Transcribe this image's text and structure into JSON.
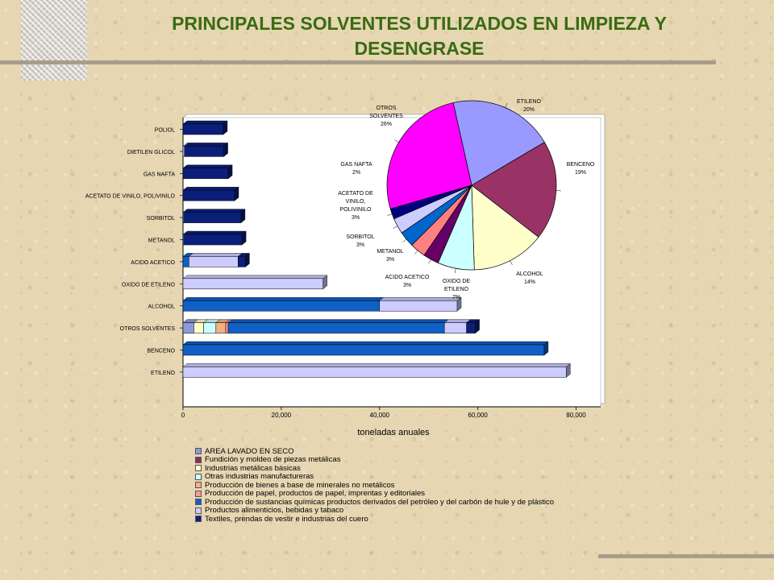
{
  "title_line1": "PRINCIPALES SOLVENTES UTILIZADOS EN LIMPIEZA Y",
  "title_line2": "DESENGRASE",
  "chart_data": [
    {
      "type": "bar",
      "orientation": "horizontal",
      "stacked": true,
      "categories": [
        "POLIOL",
        "DIETILEN GLICOL",
        "GAS NAFTA",
        "ACETATO DE VINILO, POLIVINILO",
        "SORBITOL",
        "METANOL",
        "ACIDO ACETICO",
        "OXIDO DE ETILENO",
        "ALCOHOL",
        "OTROS SOLVENTES",
        "BENCENO",
        "ETILENO"
      ],
      "xlabel": "toneladas anuales",
      "xlim": [
        0,
        85000
      ],
      "xticks": [
        0,
        20000,
        40000,
        60000,
        80000
      ],
      "xtick_labels": [
        "0",
        "20,000",
        "40,000",
        "60,000",
        "80,000"
      ],
      "legend_position": "bottom",
      "series": [
        {
          "name": "AREA LAVADO EN SECO",
          "color": "#8e9bd8",
          "values": [
            0,
            0,
            0,
            0,
            0,
            0,
            0,
            0,
            0,
            2200,
            0,
            0
          ]
        },
        {
          "name": "Fundición y moldeo de piezas metálicas",
          "color": "#8a2b5c",
          "values": [
            0,
            0,
            0,
            0,
            0,
            0,
            0,
            0,
            0,
            0,
            0,
            0
          ]
        },
        {
          "name": "Industrias metálicas básicas",
          "color": "#ffffcc",
          "values": [
            0,
            0,
            0,
            0,
            0,
            0,
            0,
            0,
            0,
            2000,
            0,
            0
          ]
        },
        {
          "name": "Otras industrias manufactureras",
          "color": "#ccffff",
          "values": [
            0,
            0,
            0,
            0,
            0,
            0,
            0,
            0,
            0,
            2500,
            0,
            0
          ]
        },
        {
          "name": "Producción de bienes a base de minerales no metálicos",
          "color": "#f4b183",
          "values": [
            0,
            0,
            0,
            0,
            0,
            0,
            0,
            0,
            0,
            2000,
            0,
            0
          ]
        },
        {
          "name": "Producción de papel, productos de papel, imprentas y editoriales",
          "color": "#ff9999",
          "values": [
            0,
            0,
            0,
            0,
            0,
            0,
            0,
            0,
            0,
            500,
            0,
            0
          ]
        },
        {
          "name": "Producción de sustancias químicas productos derivados del petróleo y del carbón de hule y de plástico",
          "color": "#1060c8",
          "values": [
            0,
            0,
            0,
            0,
            300,
            300,
            1200,
            0,
            40000,
            44000,
            73500,
            0
          ]
        },
        {
          "name": "Productos alimenticios, bebidas y tabaco",
          "color": "#ccccff",
          "values": [
            0,
            300,
            0,
            0,
            0,
            0,
            10000,
            28500,
            15800,
            4500,
            0,
            78000
          ]
        },
        {
          "name": "Textiles, prendas de vestir e industrias del cuero",
          "color": "#0b1f7a",
          "values": [
            8200,
            8000,
            9200,
            10500,
            11500,
            11700,
            1500,
            0,
            0,
            1800,
            0,
            0
          ]
        }
      ]
    },
    {
      "type": "pie",
      "slices": [
        {
          "name": "ETILENO",
          "label_lines": [
            "ETILENO",
            "20%"
          ],
          "value": 20,
          "color": "#9999ff"
        },
        {
          "name": "BENCENO",
          "label_lines": [
            "BENCENO",
            "19%"
          ],
          "value": 19,
          "color": "#993366"
        },
        {
          "name": "ALCOHOL",
          "label_lines": [
            "ALCOHOL",
            "14%"
          ],
          "value": 14,
          "color": "#ffffcc"
        },
        {
          "name": "OXIDO DE ETILENO",
          "label_lines": [
            "OXIDO DE",
            "ETILENO",
            "7%"
          ],
          "value": 7,
          "color": "#ccffff"
        },
        {
          "name": "ACIDO ACETICO",
          "label_lines": [
            "ACIDO ACETICO",
            "3%"
          ],
          "value": 3,
          "color": "#660066"
        },
        {
          "name": "METANOL",
          "label_lines": [
            "METANOL",
            "3%"
          ],
          "value": 3,
          "color": "#ff8080"
        },
        {
          "name": "SORBITOL",
          "label_lines": [
            "SORBITOL",
            "3%"
          ],
          "value": 3,
          "color": "#0066cc"
        },
        {
          "name": "ACETATO DE VINILO, POLIVINILO",
          "label_lines": [
            "ACETATO DE",
            "VINILO,",
            "POLIVINILO",
            "3%"
          ],
          "value": 3,
          "color": "#ccccff"
        },
        {
          "name": "GAS NAFTA",
          "label_lines": [
            "GAS NAFTA",
            "2%"
          ],
          "value": 2,
          "color": "#000080"
        },
        {
          "name": "OTROS SOLVENTES",
          "label_lines": [
            "OTROS",
            "SOLVENTES",
            "26%"
          ],
          "value": 26,
          "color": "#ff00ff"
        }
      ]
    }
  ]
}
